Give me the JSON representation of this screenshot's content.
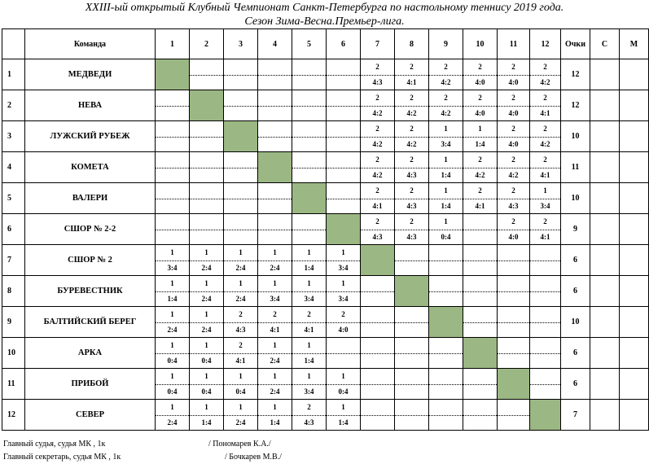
{
  "title_line1": "XXIII-ый открытый Клубный Чемпионат Санкт-Петербурга по настольному теннису 2019 года.",
  "title_line2": "Сезон Зима-Весна.Премьер-лига.",
  "headers": {
    "team": "Команда",
    "cols": [
      "1",
      "2",
      "3",
      "4",
      "5",
      "6",
      "7",
      "8",
      "9",
      "10",
      "11",
      "12"
    ],
    "points": "Очки",
    "c": "С",
    "m": "М"
  },
  "rows": [
    {
      "n": "1",
      "team": "МЕДВЕДИ",
      "points": "12",
      "cells": [
        null,
        [
          "",
          ""
        ],
        [
          "",
          ""
        ],
        [
          "",
          ""
        ],
        [
          "",
          ""
        ],
        [
          "",
          ""
        ],
        [
          "2",
          "4:3"
        ],
        [
          "2",
          "4:1"
        ],
        [
          "2",
          "4:2"
        ],
        [
          "2",
          "4:0"
        ],
        [
          "2",
          "4:0"
        ],
        [
          "2",
          "4:2"
        ]
      ]
    },
    {
      "n": "2",
      "team": "НЕВА",
      "points": "12",
      "cells": [
        [
          "",
          ""
        ],
        null,
        [
          "",
          ""
        ],
        [
          "",
          ""
        ],
        [
          "",
          ""
        ],
        [
          "",
          ""
        ],
        [
          "2",
          "4:2"
        ],
        [
          "2",
          "4:2"
        ],
        [
          "2",
          "4:2"
        ],
        [
          "2",
          "4:0"
        ],
        [
          "2",
          "4:0"
        ],
        [
          "2",
          "4:1"
        ]
      ]
    },
    {
      "n": "3",
      "team": "ЛУЖСКИЙ РУБЕЖ",
      "points": "10",
      "cells": [
        [
          "",
          ""
        ],
        [
          "",
          ""
        ],
        null,
        [
          "",
          ""
        ],
        [
          "",
          ""
        ],
        [
          "",
          ""
        ],
        [
          "2",
          "4:2"
        ],
        [
          "2",
          "4:2"
        ],
        [
          "1",
          "3:4"
        ],
        [
          "1",
          "1:4"
        ],
        [
          "2",
          "4:0"
        ],
        [
          "2",
          "4:2"
        ]
      ]
    },
    {
      "n": "4",
      "team": "КОМЕТА",
      "points": "11",
      "cells": [
        [
          "",
          ""
        ],
        [
          "",
          ""
        ],
        [
          "",
          ""
        ],
        null,
        [
          "",
          ""
        ],
        [
          "",
          ""
        ],
        [
          "2",
          "4:2"
        ],
        [
          "2",
          "4:3"
        ],
        [
          "1",
          "1:4"
        ],
        [
          "2",
          "4:2"
        ],
        [
          "2",
          "4:2"
        ],
        [
          "2",
          "4:1"
        ]
      ]
    },
    {
      "n": "5",
      "team": "ВАЛЕРИ",
      "points": "10",
      "cells": [
        [
          "",
          ""
        ],
        [
          "",
          ""
        ],
        [
          "",
          ""
        ],
        [
          "",
          ""
        ],
        null,
        [
          "",
          ""
        ],
        [
          "2",
          "4:1"
        ],
        [
          "2",
          "4:3"
        ],
        [
          "1",
          "1:4"
        ],
        [
          "2",
          "4:1"
        ],
        [
          "2",
          "4:3"
        ],
        [
          "1",
          "3:4"
        ]
      ]
    },
    {
      "n": "6",
      "team": "СШОР № 2-2",
      "points": "9",
      "cells": [
        [
          "",
          ""
        ],
        [
          "",
          ""
        ],
        [
          "",
          ""
        ],
        [
          "",
          ""
        ],
        [
          "",
          ""
        ],
        null,
        [
          "2",
          "4:3"
        ],
        [
          "2",
          "4:3"
        ],
        [
          "1",
          "0:4"
        ],
        [
          "",
          ""
        ],
        [
          "2",
          "4:0"
        ],
        [
          "2",
          "4:1"
        ]
      ]
    },
    {
      "n": "7",
      "team": "СШОР № 2",
      "points": "6",
      "cells": [
        [
          "1",
          "3:4"
        ],
        [
          "1",
          "2:4"
        ],
        [
          "1",
          "2:4"
        ],
        [
          "1",
          "2:4"
        ],
        [
          "1",
          "1:4"
        ],
        [
          "1",
          "3:4"
        ],
        null,
        [
          "",
          ""
        ],
        [
          "",
          ""
        ],
        [
          "",
          ""
        ],
        [
          "",
          ""
        ],
        [
          "",
          ""
        ]
      ]
    },
    {
      "n": "8",
      "team": "БУРЕВЕСТНИК",
      "points": "6",
      "cells": [
        [
          "1",
          "1:4"
        ],
        [
          "1",
          "2:4"
        ],
        [
          "1",
          "2:4"
        ],
        [
          "1",
          "3:4"
        ],
        [
          "1",
          "3:4"
        ],
        [
          "1",
          "3:4"
        ],
        [
          "",
          ""
        ],
        null,
        [
          "",
          ""
        ],
        [
          "",
          ""
        ],
        [
          "",
          ""
        ],
        [
          "",
          ""
        ]
      ]
    },
    {
      "n": "9",
      "team": "БАЛТИЙСКИЙ БЕРЕГ",
      "points": "10",
      "cells": [
        [
          "1",
          "2:4"
        ],
        [
          "1",
          "2:4"
        ],
        [
          "2",
          "4:3"
        ],
        [
          "2",
          "4:1"
        ],
        [
          "2",
          "4:1"
        ],
        [
          "2",
          "4:0"
        ],
        [
          "",
          ""
        ],
        [
          "",
          ""
        ],
        null,
        [
          "",
          ""
        ],
        [
          "",
          ""
        ],
        [
          "",
          ""
        ]
      ]
    },
    {
      "n": "10",
      "team": "АРКА",
      "points": "6",
      "cells": [
        [
          "1",
          "0:4"
        ],
        [
          "1",
          "0:4"
        ],
        [
          "2",
          "4:1"
        ],
        [
          "1",
          "2:4"
        ],
        [
          "1",
          "1:4"
        ],
        [
          "",
          ""
        ],
        [
          "",
          ""
        ],
        [
          "",
          ""
        ],
        [
          "",
          ""
        ],
        null,
        [
          "",
          ""
        ],
        [
          "",
          ""
        ]
      ]
    },
    {
      "n": "11",
      "team": "ПРИБОЙ",
      "points": "6",
      "cells": [
        [
          "1",
          "0:4"
        ],
        [
          "1",
          "0:4"
        ],
        [
          "1",
          "0:4"
        ],
        [
          "1",
          "2:4"
        ],
        [
          "1",
          "3:4"
        ],
        [
          "1",
          "0:4"
        ],
        [
          "",
          ""
        ],
        [
          "",
          ""
        ],
        [
          "",
          ""
        ],
        [
          "",
          ""
        ],
        null,
        [
          "",
          ""
        ]
      ]
    },
    {
      "n": "12",
      "team": "СЕВЕР",
      "points": "7",
      "cells": [
        [
          "1",
          "2:4"
        ],
        [
          "1",
          "1:4"
        ],
        [
          "1",
          "2:4"
        ],
        [
          "1",
          "1:4"
        ],
        [
          "2",
          "4:3"
        ],
        [
          "1",
          "1:4"
        ],
        [
          "",
          ""
        ],
        [
          "",
          ""
        ],
        [
          "",
          ""
        ],
        [
          "",
          ""
        ],
        [
          "",
          ""
        ],
        null
      ]
    }
  ],
  "footer": {
    "judge_label": "Главный судья, судья МК  , 1к",
    "judge_name": "/  Пономарев К.А./",
    "secretary_label": "Главный секретарь, судья МК  , 1к",
    "secretary_name": "/  Бочкарев М.В./"
  },
  "colors": {
    "diagonal": "#9bb783"
  }
}
